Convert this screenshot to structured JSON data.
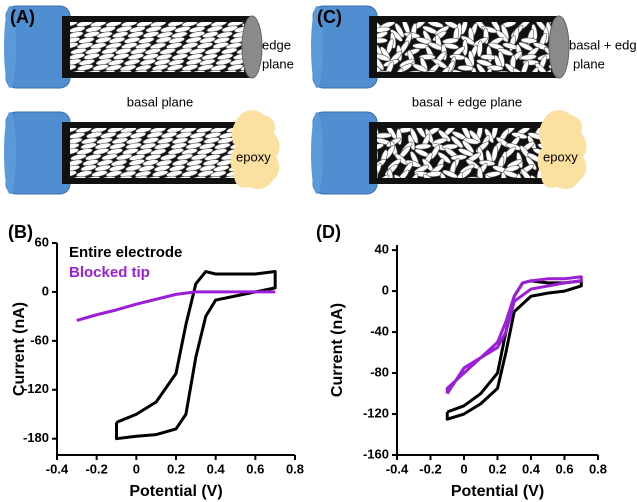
{
  "diagram": {
    "panels": [
      {
        "label": "(A)",
        "top_label": "edge",
        "top_label_2": "plane",
        "middle_label": "basal plane",
        "bottom_label": "epoxy"
      },
      {
        "label": "(C)",
        "top_label": "basal + edge",
        "top_label_2": "plane",
        "middle_label": "basal + edge plane",
        "bottom_label": "epoxy"
      }
    ]
  },
  "chart_data": [
    {
      "type": "line",
      "label": "(B)",
      "xlabel": "Potential (V)",
      "ylabel": "Current (nA)",
      "xlim": [
        -0.4,
        0.8
      ],
      "xticks": [
        -0.4,
        -0.2,
        0,
        0.2,
        0.4,
        0.6,
        0.8
      ],
      "ylim": [
        -200,
        60
      ],
      "yticks": [
        60,
        0,
        -60,
        -120,
        -180
      ],
      "legend": "upper left",
      "series": [
        {
          "name": "Entire electrode",
          "color": "#000000",
          "x": [
            -0.1,
            0,
            0.1,
            0.2,
            0.25,
            0.3,
            0.35,
            0.4,
            0.5,
            0.6,
            0.7,
            0.7,
            0.6,
            0.5,
            0.4,
            0.35,
            0.3,
            0.25,
            0.2,
            0.1,
            0,
            -0.1,
            -0.1
          ],
          "values": [
            -160,
            -150,
            -135,
            -100,
            -40,
            10,
            25,
            22,
            22,
            22,
            25,
            5,
            0,
            -5,
            -10,
            -30,
            -80,
            -150,
            -168,
            -175,
            -177,
            -180,
            -160
          ]
        },
        {
          "name": "Blocked tip",
          "color": "#9b1fd6",
          "x": [
            -0.3,
            -0.2,
            -0.1,
            0,
            0.1,
            0.2,
            0.3,
            0.4,
            0.5,
            0.6,
            0.7
          ],
          "values": [
            -35,
            -28,
            -22,
            -15,
            -9,
            -3,
            0,
            0,
            0,
            0,
            0
          ]
        }
      ]
    },
    {
      "type": "line",
      "label": "(D)",
      "xlabel": "Potential (V)",
      "ylabel": "Current (nA)",
      "xlim": [
        -0.4,
        0.8
      ],
      "xticks": [
        -0.4,
        -0.2,
        0,
        0.2,
        0.4,
        0.6,
        0.8
      ],
      "ylim": [
        -160,
        45
      ],
      "yticks": [
        40,
        0,
        -40,
        -80,
        -120,
        -160
      ],
      "series": [
        {
          "name": "Entire electrode",
          "color": "#000000",
          "x": [
            -0.1,
            0,
            0.1,
            0.2,
            0.25,
            0.3,
            0.35,
            0.4,
            0.5,
            0.6,
            0.7,
            0.7,
            0.6,
            0.5,
            0.4,
            0.3,
            0.25,
            0.2,
            0.1,
            0,
            -0.1,
            -0.1
          ],
          "values": [
            -118,
            -112,
            -100,
            -80,
            -40,
            -5,
            8,
            10,
            8,
            8,
            10,
            5,
            0,
            -2,
            -5,
            -20,
            -60,
            -95,
            -110,
            -120,
            -125,
            -118
          ]
        },
        {
          "name": "Blocked tip",
          "color": "#9b1fd6",
          "x": [
            -0.1,
            0,
            0.1,
            0.2,
            0.25,
            0.3,
            0.35,
            0.4,
            0.5,
            0.6,
            0.7,
            0.7,
            0.6,
            0.5,
            0.4,
            0.3,
            0.25,
            0.2,
            0.1,
            0,
            -0.1,
            -0.1
          ],
          "values": [
            -100,
            -75,
            -65,
            -50,
            -30,
            -5,
            8,
            10,
            12,
            12,
            14,
            10,
            8,
            5,
            2,
            -10,
            -40,
            -55,
            -65,
            -80,
            -95,
            -100
          ]
        }
      ]
    }
  ]
}
